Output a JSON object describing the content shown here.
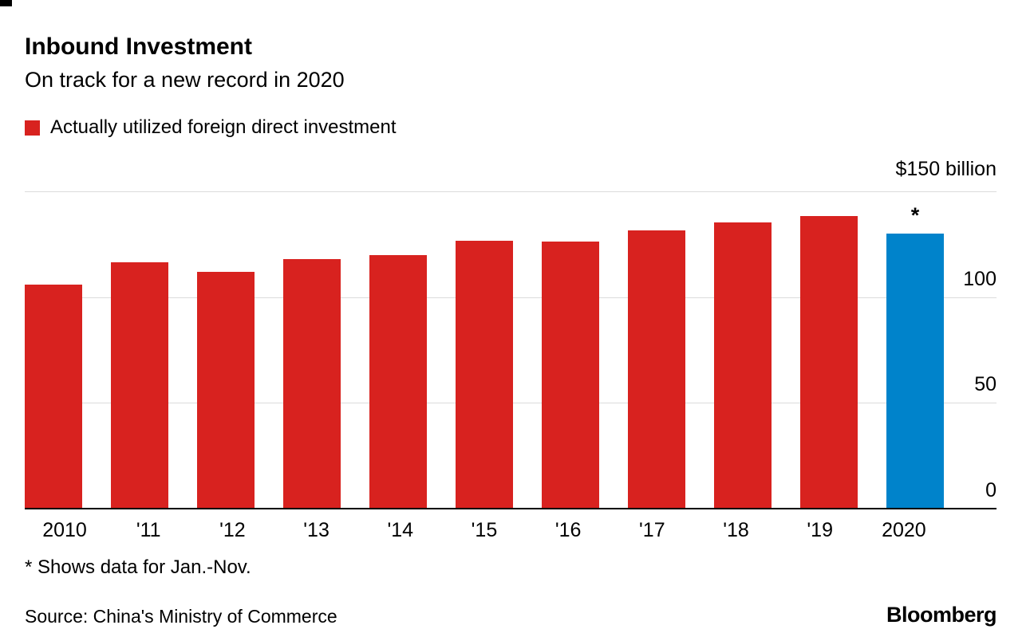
{
  "header": {
    "title": "Inbound Investment",
    "subtitle": "On track for a new record in 2020"
  },
  "legend": {
    "label": "Actually utilized foreign direct investment"
  },
  "colors": {
    "bar": "#d8221f",
    "highlight": "#0083cb",
    "gridline": "#dcdcdc"
  },
  "chart_data": {
    "type": "bar",
    "title": "Inbound Investment",
    "subtitle": "On track for a new record in 2020",
    "legend": [
      "Actually utilized foreign direct investment"
    ],
    "categories": [
      "2010",
      "'11",
      "'12",
      "'13",
      "'14",
      "'15",
      "'16",
      "'17",
      "'18",
      "'19",
      "2020"
    ],
    "values": [
      105.7,
      116.0,
      111.7,
      117.6,
      119.6,
      126.3,
      126.0,
      131.0,
      135.0,
      138.1,
      129.5
    ],
    "unit": "$ billion",
    "ylim": [
      0,
      150
    ],
    "y_top_label": "$150 billion",
    "yticks": [
      100,
      50,
      0
    ],
    "gridline_values": [
      0,
      50,
      100,
      150
    ],
    "highlight_index": 10,
    "annotation": "*",
    "grid": true,
    "legend_position": "top-left",
    "yaxis_position": "right"
  },
  "footer": {
    "note": "* Shows data for Jan.-Nov.",
    "source": "Source: China's Ministry of Commerce",
    "brand": "Bloomberg"
  }
}
